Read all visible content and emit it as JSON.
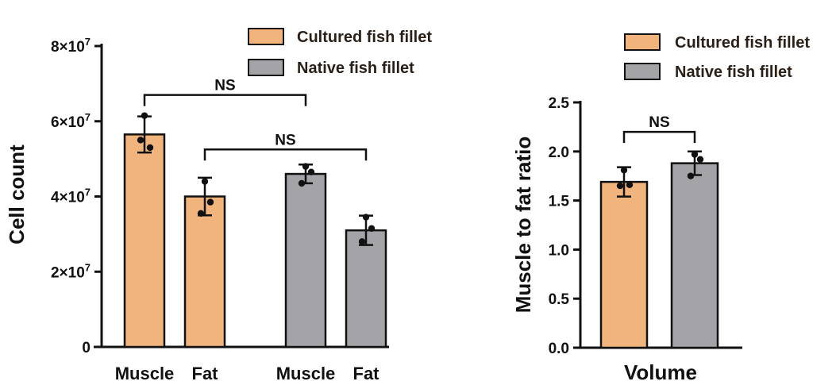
{
  "chart_data": [
    {
      "type": "bar",
      "ylabel": "Cell count",
      "ylim": [
        0,
        80000000
      ],
      "yticks": [
        {
          "value": 0,
          "base": "0",
          "exp": ""
        },
        {
          "value": 20000000,
          "base": "2×10",
          "exp": "7"
        },
        {
          "value": 40000000,
          "base": "4×10",
          "exp": "7"
        },
        {
          "value": 60000000,
          "base": "6×10",
          "exp": "7"
        },
        {
          "value": 80000000,
          "base": "8×10",
          "exp": "7"
        }
      ],
      "legend": [
        {
          "label": "Cultured fish fillet",
          "color": "#f0b47c"
        },
        {
          "label": "Native fish fillet",
          "color": "#a4a4a8"
        }
      ],
      "bars": [
        {
          "category": "Muscle",
          "series": "Cultured fish fillet",
          "value": 56500000,
          "error": 4800000,
          "points": [
            61500000,
            53000000,
            55000000
          ]
        },
        {
          "category": "Fat",
          "series": "Cultured fish fillet",
          "value": 40000000,
          "error": 5000000,
          "points": [
            44000000,
            38500000,
            35500000
          ]
        },
        {
          "category": "Muscle",
          "series": "Native fish fillet",
          "value": 46000000,
          "error": 2500000,
          "points": [
            48000000,
            46500000,
            43500000
          ]
        },
        {
          "category": "Fat",
          "series": "Native fish fillet",
          "value": 31000000,
          "error": 3900000,
          "points": [
            34500000,
            31500000,
            28000000
          ]
        }
      ],
      "significance": [
        {
          "from": 0,
          "to": 2,
          "label": "NS",
          "y": 67000000
        },
        {
          "from": 1,
          "to": 3,
          "label": "NS",
          "y": 52500000
        }
      ]
    },
    {
      "type": "bar",
      "ylabel": "Muscle to fat ratio",
      "xlabel": "Volume",
      "ylim": [
        0,
        2.5
      ],
      "yticks": [
        {
          "value": 0,
          "label": "0.0"
        },
        {
          "value": 0.5,
          "label": "0.5"
        },
        {
          "value": 1.0,
          "label": "1.0"
        },
        {
          "value": 1.5,
          "label": "1.5"
        },
        {
          "value": 2.0,
          "label": "2.0"
        },
        {
          "value": 2.5,
          "label": "2.5"
        }
      ],
      "legend": [
        {
          "label": "Cultured fish fillet",
          "color": "#f0b47c"
        },
        {
          "label": "Native fish fillet",
          "color": "#a4a4a8"
        }
      ],
      "bars": [
        {
          "series": "Cultured fish fillet",
          "value": 1.69,
          "error": 0.15,
          "points": [
            1.81,
            1.66,
            1.65
          ]
        },
        {
          "series": "Native fish fillet",
          "value": 1.88,
          "error": 0.12,
          "points": [
            1.97,
            1.92,
            1.75
          ]
        }
      ],
      "significance": [
        {
          "from": 0,
          "to": 1,
          "label": "NS",
          "y": 2.2
        }
      ]
    }
  ],
  "text": {
    "left_categories": [
      "Muscle",
      "Fat",
      "Muscle",
      "Fat"
    ],
    "right_xlabel": "Volume"
  }
}
